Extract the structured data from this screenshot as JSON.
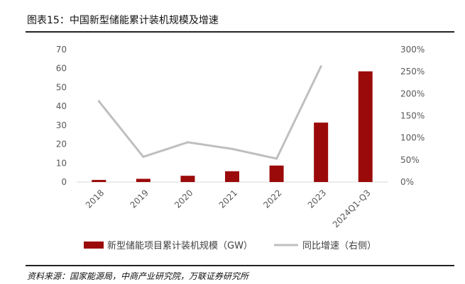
{
  "figure_title": "图表15：中国新型储能累计装机规模及增速",
  "source": "资料来源：国家能源局，中商产业研究院，万联证券研究所",
  "chart_data": {
    "type": "bar",
    "categories": [
      "2018",
      "2019",
      "2020",
      "2021",
      "2022",
      "2023",
      "2024Q1-Q3"
    ],
    "series": [
      {
        "name": "新型储能项目累计装机规模（GW）",
        "type": "bar",
        "axis": "left",
        "color": "#9b0a0a",
        "values": [
          1.1,
          1.7,
          3.3,
          5.7,
          8.7,
          31.4,
          58.5
        ]
      },
      {
        "name": "同比增速（右侧）",
        "type": "line",
        "axis": "right",
        "color": "#bfbfbf",
        "values": [
          183,
          57,
          90,
          75,
          53,
          262,
          null
        ]
      }
    ],
    "ylim": [
      0,
      70
    ],
    "yticks": [
      "0",
      "10",
      "20",
      "30",
      "40",
      "50",
      "60",
      "70"
    ],
    "y2lim": [
      0,
      300
    ],
    "y2ticks": [
      "0%",
      "50%",
      "100%",
      "150%",
      "200%",
      "250%",
      "300%"
    ],
    "legend": "bottom",
    "grid": false
  }
}
